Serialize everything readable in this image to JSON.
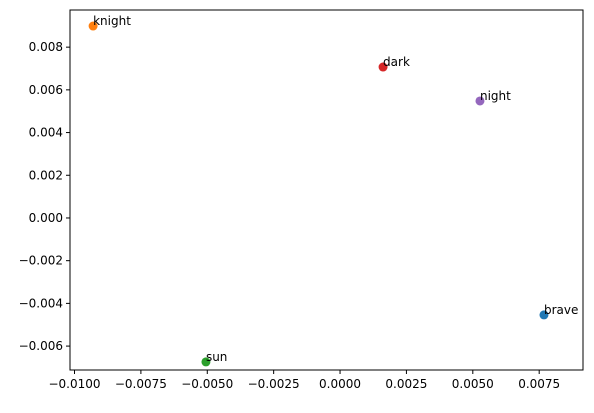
{
  "chart_data": {
    "type": "scatter",
    "series": [
      {
        "name": "brave",
        "color": "#1f77b4",
        "x": [
          0.00768
        ],
        "values": [
          -0.00454
        ]
      },
      {
        "name": "knight",
        "color": "#ff7f0e",
        "x": [
          -0.0093
        ],
        "values": [
          0.00899
        ]
      },
      {
        "name": "sun",
        "color": "#2ca02c",
        "x": [
          -0.00505
        ],
        "values": [
          -0.00674
        ]
      },
      {
        "name": "dark",
        "color": "#d62728",
        "x": [
          0.00162
        ],
        "values": [
          0.00707
        ]
      },
      {
        "name": "night",
        "color": "#9467bd",
        "x": [
          0.00527
        ],
        "values": [
          0.00548
        ]
      }
    ],
    "xlim": [
      -0.01017,
      0.00915
    ],
    "ylim": [
      -0.00712,
      0.00974
    ],
    "xticks": [
      {
        "value": -0.01,
        "label": "−0.0100"
      },
      {
        "value": -0.0075,
        "label": "−0.0075"
      },
      {
        "value": -0.005,
        "label": "−0.0050"
      },
      {
        "value": -0.0025,
        "label": "−0.0025"
      },
      {
        "value": 0,
        "label": "0.0000"
      },
      0.0025,
      {
        "value": 0.005,
        "label": "0.0050"
      },
      0.0075
    ],
    "yticks": [
      {
        "value": -0.006,
        "label": "−0.006"
      },
      {
        "value": -0.004,
        "label": "−0.004"
      },
      {
        "value": -0.002,
        "label": "−0.002"
      },
      {
        "value": 0,
        "label": "0.000"
      },
      0.002,
      0.004,
      0.006,
      0.008
    ]
  }
}
